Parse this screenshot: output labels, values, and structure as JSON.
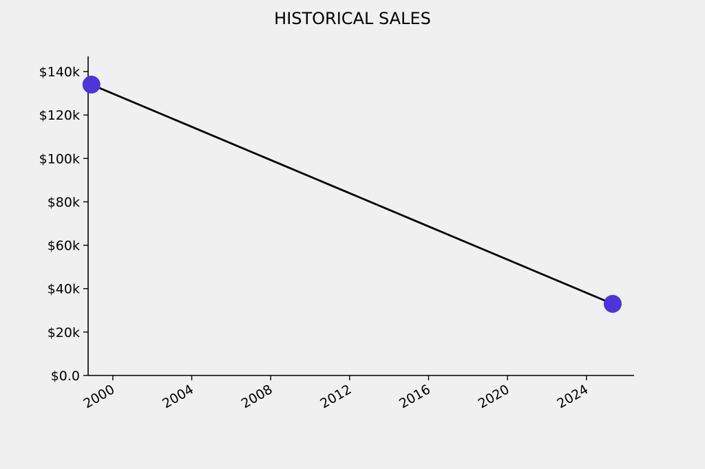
{
  "chart_data": {
    "type": "line",
    "title": "HISTORICAL SALES",
    "xlabel": "",
    "ylabel": "",
    "x_axis_type": "date",
    "xlim": [
      "1998-10-01",
      "2026-06-01"
    ],
    "ylim": [
      0,
      147000
    ],
    "x_ticks": [
      {
        "date": "2000-01-01",
        "label": "2000"
      },
      {
        "date": "2004-01-01",
        "label": "2004"
      },
      {
        "date": "2008-01-01",
        "label": "2008"
      },
      {
        "date": "2012-01-01",
        "label": "2012"
      },
      {
        "date": "2016-01-01",
        "label": "2016"
      },
      {
        "date": "2020-01-01",
        "label": "2020"
      },
      {
        "date": "2024-01-01",
        "label": "2024"
      }
    ],
    "y_ticks": [
      {
        "value": 0,
        "label": "$0.0"
      },
      {
        "value": 20000,
        "label": "$20k"
      },
      {
        "value": 40000,
        "label": "$40k"
      },
      {
        "value": 60000,
        "label": "$60k"
      },
      {
        "value": 80000,
        "label": "$80k"
      },
      {
        "value": 100000,
        "label": "$100k"
      },
      {
        "value": 120000,
        "label": "$120k"
      },
      {
        "value": 140000,
        "label": "$140k"
      }
    ],
    "grid": false,
    "legend": "none",
    "series": [
      {
        "line_color": "#000000",
        "marker_color": "#4b35db",
        "points": [
          {
            "x": "1998-12-01",
            "y": 134000
          },
          {
            "x": "2025-05-01",
            "y": 33000
          }
        ]
      }
    ]
  }
}
